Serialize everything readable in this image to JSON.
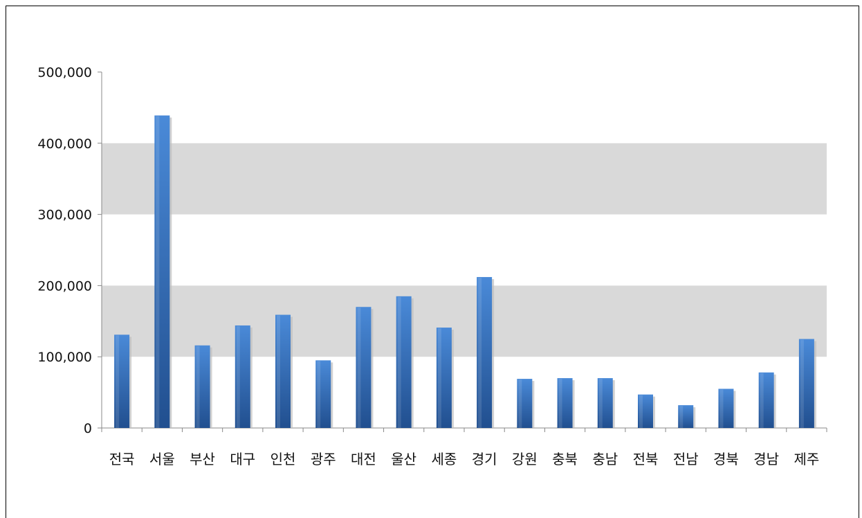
{
  "chart_data": {
    "type": "bar",
    "title": "",
    "xlabel": "",
    "ylabel": "",
    "categories": [
      "전국",
      "서울",
      "부산",
      "대구",
      "인천",
      "광주",
      "대전",
      "울산",
      "세종",
      "경기",
      "강원",
      "충북",
      "충남",
      "전북",
      "전남",
      "경북",
      "경남",
      "제주"
    ],
    "values": [
      131000,
      439000,
      116000,
      144000,
      159000,
      95000,
      170000,
      185000,
      141000,
      212000,
      69000,
      70000,
      70000,
      47000,
      32000,
      55000,
      78000,
      125000
    ],
    "ylim": [
      0,
      500000
    ],
    "yticks": [
      0,
      100000,
      200000,
      300000,
      400000,
      500000
    ],
    "ytick_labels": [
      "0",
      "100,000",
      "200,000",
      "300,000",
      "400,000",
      "500,000"
    ],
    "grid": "alternating horizontal bands",
    "legend": "none",
    "colors": {
      "bar": "#3f7fcf",
      "bar_dark": "#1f4f94",
      "band": "#d9d9d9",
      "axis": "#888888"
    }
  }
}
